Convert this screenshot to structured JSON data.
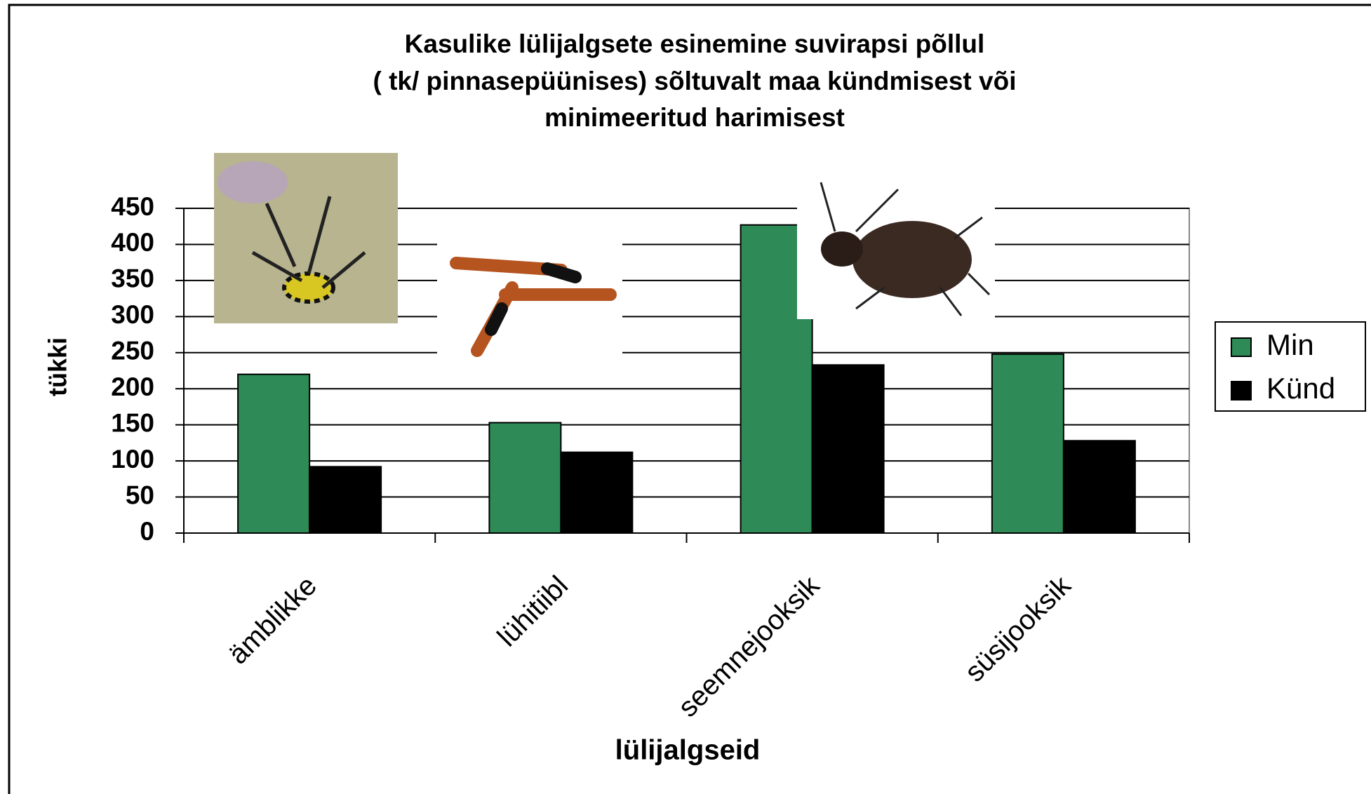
{
  "chart_data": {
    "type": "bar",
    "title": [
      "Kasulike lülijalgsete esinemine suvirapsi põllul",
      "( tk/ pinnasepüünises) sõltuvalt  maa kündmisest või",
      "minimeeritud harimisest"
    ],
    "x_label": "lülijalgseid",
    "y_label": "tükki",
    "categories": [
      "ämblikke",
      "lühitiibl",
      "seemnejooksik",
      "süsijooksik"
    ],
    "series": [
      {
        "name": "Min",
        "color": "#2e8b57",
        "values": [
          220,
          153,
          427,
          248
        ]
      },
      {
        "name": "Künd",
        "color": "#000000",
        "values": [
          92,
          112,
          233,
          128
        ]
      }
    ],
    "ylim": [
      0,
      450
    ],
    "yticks": [
      0,
      50,
      100,
      150,
      200,
      250,
      300,
      350,
      400,
      450
    ],
    "grid": true,
    "legend": "right"
  }
}
